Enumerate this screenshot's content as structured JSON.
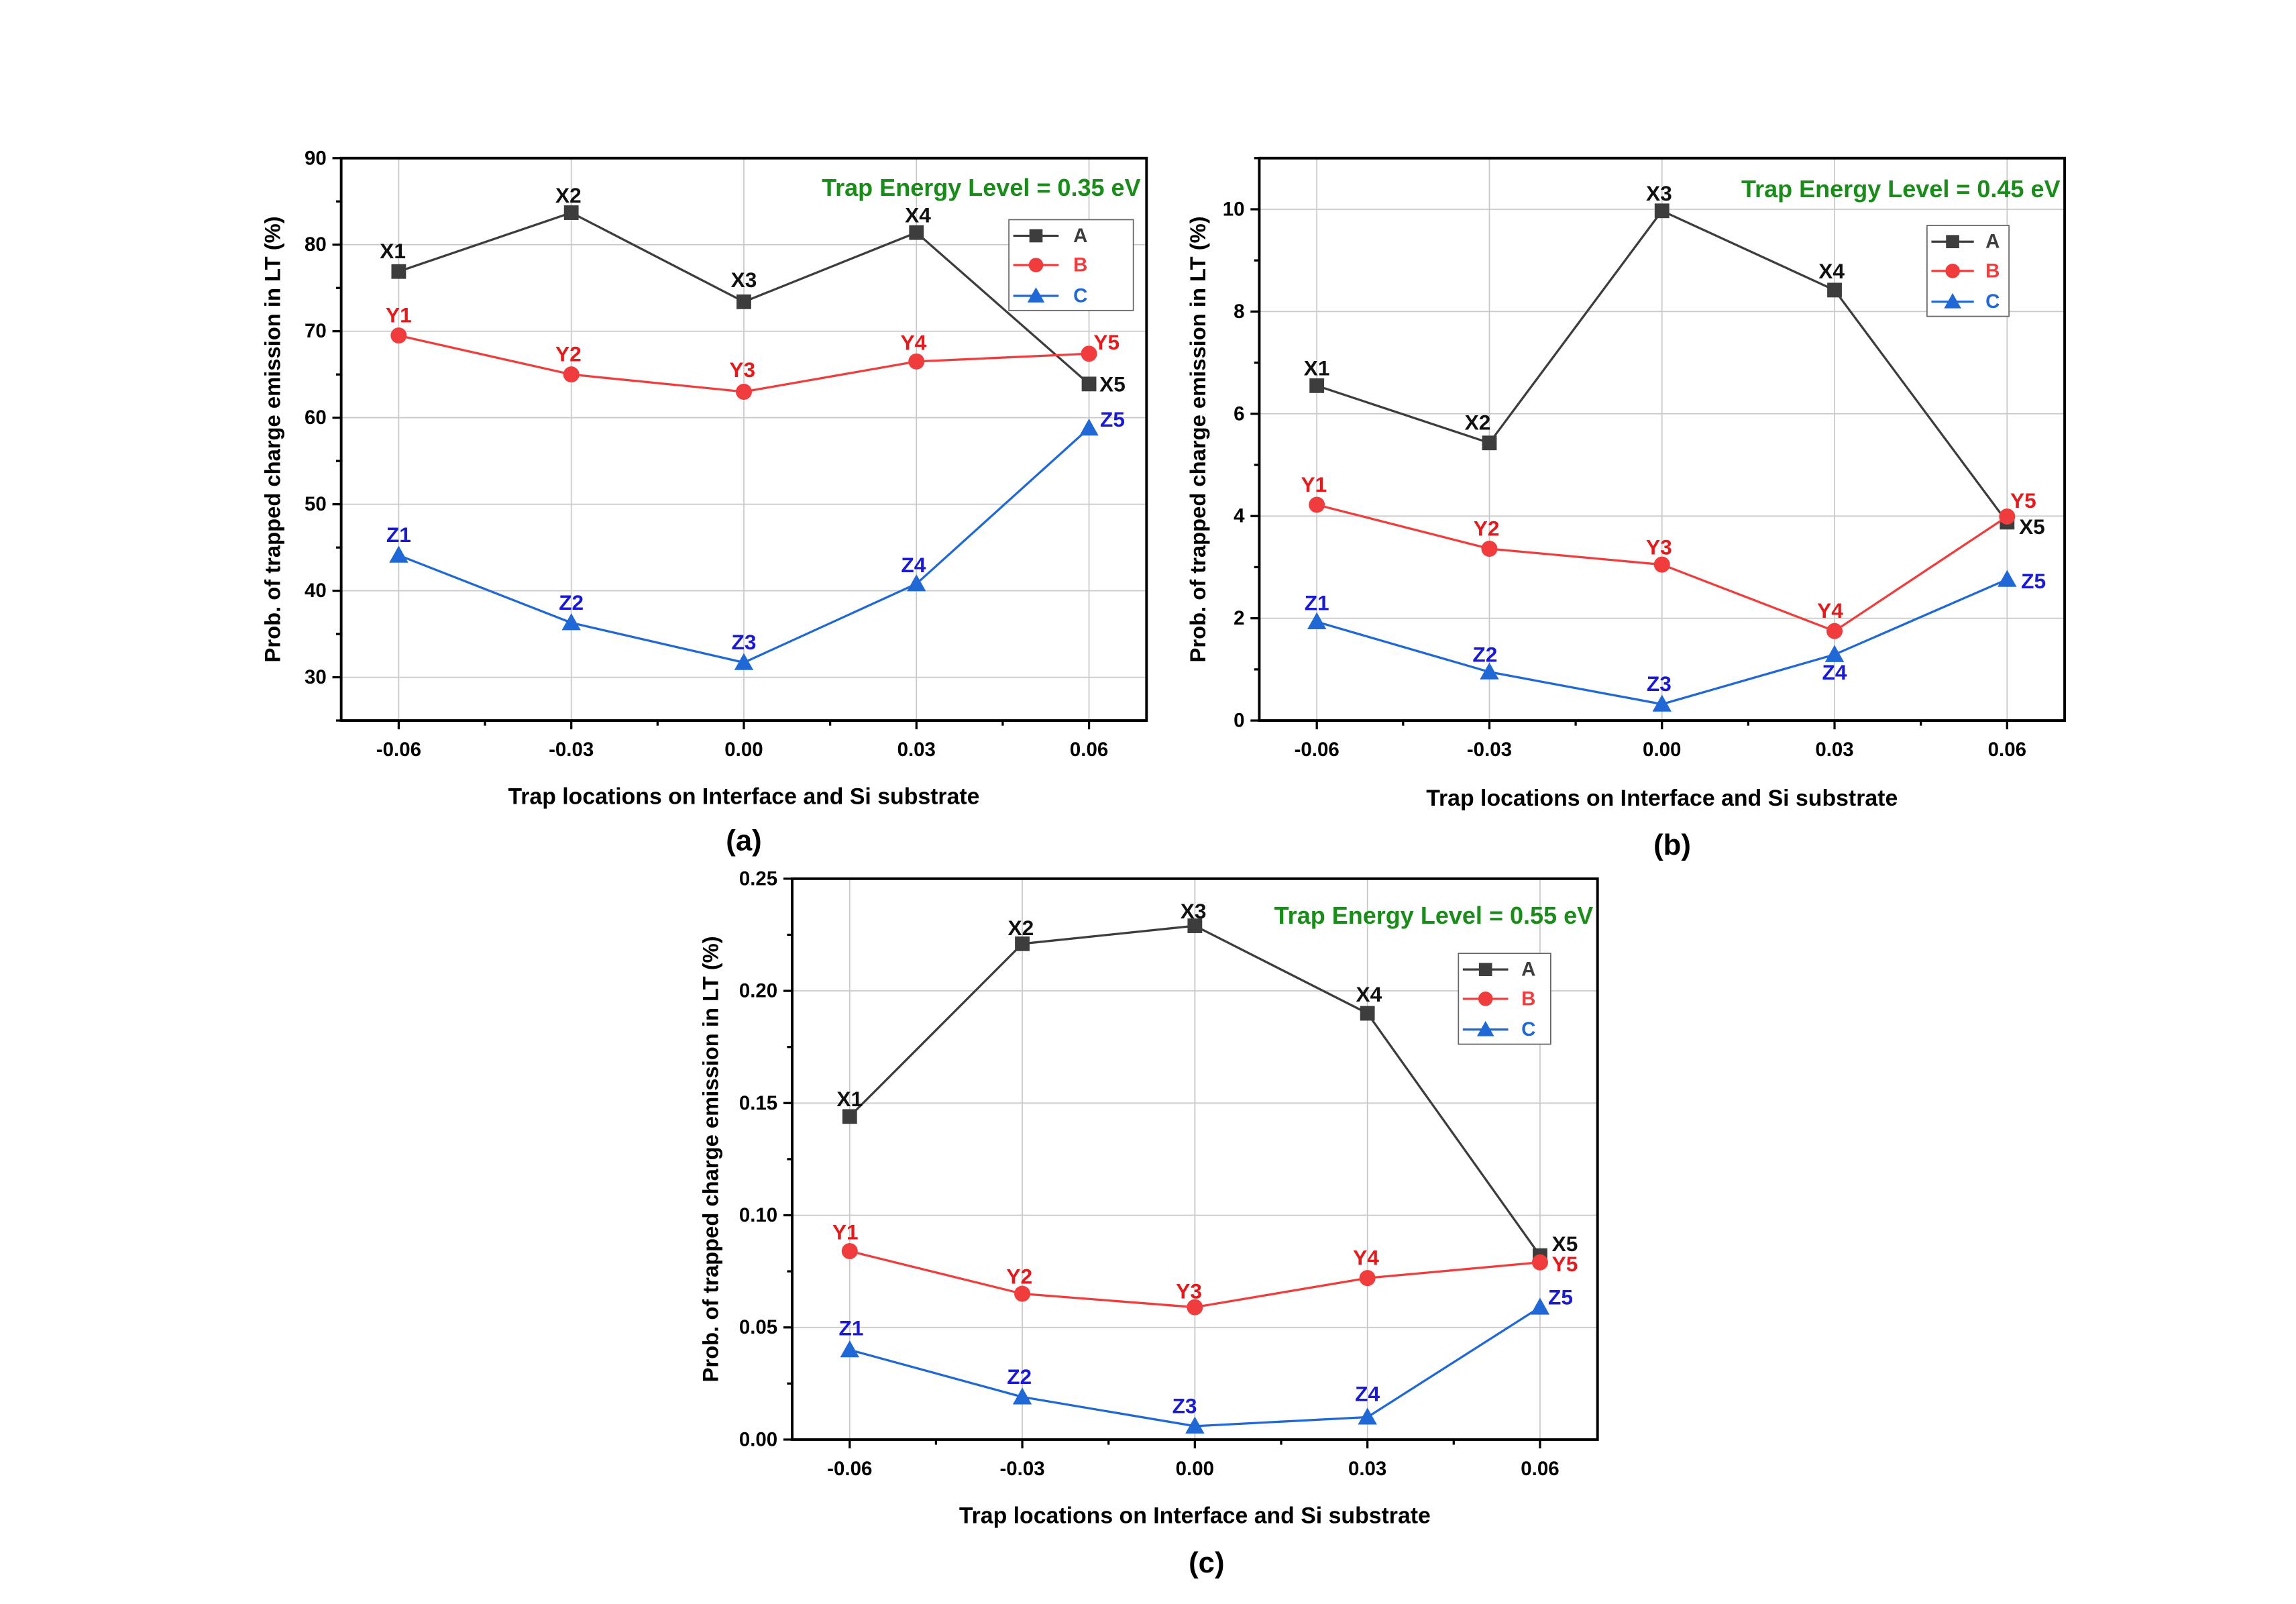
{
  "chart_data": [
    {
      "panel": "(a)",
      "type": "line",
      "annotation": "Trap Energy Level = 0.35 eV",
      "annotation_color": "#1a8c1a",
      "xlabel": "Trap locations on Interface and Si substrate",
      "ylabel": "Prob. of trapped charge emission in LT (%)",
      "x": [
        -0.06,
        -0.03,
        0.0,
        0.03,
        0.06
      ],
      "x_ticks": [
        -0.06,
        -0.03,
        0.0,
        0.03,
        0.06
      ],
      "x_tick_labels": [
        "-0.06",
        "-0.03",
        "0.00",
        "0.03",
        "0.06"
      ],
      "y_ticks": [
        30,
        40,
        50,
        60,
        70,
        80,
        90
      ],
      "y_tick_labels": [
        "30",
        "40",
        "50",
        "60",
        "70",
        "80",
        "90"
      ],
      "xlim": [
        -0.07,
        0.07
      ],
      "ylim": [
        25,
        90
      ],
      "grid": true,
      "legend_position": "top-right",
      "series": [
        {
          "name": "A",
          "marker": "square",
          "color": "#3d3d3d",
          "label_color": "#111111",
          "values": [
            76.9,
            83.7,
            73.4,
            81.4,
            63.9
          ],
          "point_labels": [
            "X1",
            "X2",
            "X3",
            "X4",
            "X5"
          ]
        },
        {
          "name": "B",
          "marker": "circle",
          "color": "#f03c3c",
          "label_color": "#e41a1c",
          "values": [
            69.5,
            65.0,
            63.0,
            66.5,
            67.4
          ],
          "point_labels": [
            "Y1",
            "Y2",
            "Y3",
            "Y4",
            "Y5"
          ]
        },
        {
          "name": "C",
          "marker": "triangle",
          "color": "#1f68d6",
          "label_color": "#1a1ad4",
          "values": [
            44.1,
            36.3,
            31.7,
            40.8,
            58.8
          ],
          "point_labels": [
            "Z1",
            "Z2",
            "Z3",
            "Z4",
            "Z5"
          ]
        }
      ]
    },
    {
      "panel": "(b)",
      "type": "line",
      "annotation": "Trap Energy Level = 0.45 eV",
      "annotation_color": "#1a8c1a",
      "xlabel": "Trap locations on Interface and Si substrate",
      "ylabel": "Prob. of trapped charge emission in LT (%)",
      "x": [
        -0.06,
        -0.03,
        0.0,
        0.03,
        0.06
      ],
      "x_ticks": [
        -0.06,
        -0.03,
        0.0,
        0.03,
        0.06
      ],
      "x_tick_labels": [
        "-0.06",
        "-0.03",
        "0.00",
        "0.03",
        "0.06"
      ],
      "y_ticks": [
        0,
        2,
        4,
        6,
        8,
        10
      ],
      "y_tick_labels": [
        "0",
        "2",
        "4",
        "6",
        "8",
        "10"
      ],
      "xlim": [
        -0.07,
        0.07
      ],
      "ylim": [
        0,
        11
      ],
      "grid": true,
      "legend_position": "top-right",
      "series": [
        {
          "name": "A",
          "marker": "square",
          "color": "#3d3d3d",
          "label_color": "#111111",
          "values": [
            6.55,
            5.43,
            9.97,
            8.42,
            3.88
          ],
          "point_labels": [
            "X1",
            "X2",
            "X3",
            "X4",
            "X5"
          ]
        },
        {
          "name": "B",
          "marker": "circle",
          "color": "#f03c3c",
          "label_color": "#e41a1c",
          "values": [
            4.22,
            3.36,
            3.05,
            1.75,
            3.99
          ],
          "point_labels": [
            "Y1",
            "Y2",
            "Y3",
            "Y4",
            "Y5"
          ]
        },
        {
          "name": "C",
          "marker": "triangle",
          "color": "#1f68d6",
          "label_color": "#1a1ad4",
          "values": [
            1.93,
            0.95,
            0.32,
            1.29,
            2.76
          ],
          "point_labels": [
            "Z1",
            "Z2",
            "Z3",
            "Z4",
            "Z5"
          ]
        }
      ]
    },
    {
      "panel": "(c)",
      "type": "line",
      "annotation": "Trap Energy Level = 0.55 eV",
      "annotation_color": "#1a8c1a",
      "xlabel": "Trap locations on Interface and Si substrate",
      "ylabel": "Prob. of trapped charge emission in LT (%)",
      "x": [
        -0.06,
        -0.03,
        0.0,
        0.03,
        0.06
      ],
      "x_ticks": [
        -0.06,
        -0.03,
        0.0,
        0.03,
        0.06
      ],
      "x_tick_labels": [
        "-0.06",
        "-0.03",
        "0.00",
        "0.03",
        "0.06"
      ],
      "y_ticks": [
        0.0,
        0.05,
        0.1,
        0.15,
        0.2,
        0.25
      ],
      "y_tick_labels": [
        "0.00",
        "0.05",
        "0.10",
        "0.15",
        "0.20",
        "0.25"
      ],
      "xlim": [
        -0.07,
        0.07
      ],
      "ylim": [
        0,
        0.25
      ],
      "grid": true,
      "legend_position": "top-right",
      "series": [
        {
          "name": "A",
          "marker": "square",
          "color": "#3d3d3d",
          "label_color": "#111111",
          "values": [
            0.144,
            0.221,
            0.229,
            0.19,
            0.082
          ],
          "point_labels": [
            "X1",
            "X2",
            "X3",
            "X4",
            "X5"
          ]
        },
        {
          "name": "B",
          "marker": "circle",
          "color": "#f03c3c",
          "label_color": "#e41a1c",
          "values": [
            0.084,
            0.065,
            0.059,
            0.072,
            0.079
          ],
          "point_labels": [
            "Y1",
            "Y2",
            "Y3",
            "Y4",
            "Y5"
          ]
        },
        {
          "name": "C",
          "marker": "triangle",
          "color": "#1f68d6",
          "label_color": "#1a1ad4",
          "values": [
            0.04,
            0.019,
            0.006,
            0.01,
            0.059
          ],
          "point_labels": [
            "Z1",
            "Z2",
            "Z3",
            "Z4",
            "Z5"
          ]
        }
      ]
    }
  ]
}
